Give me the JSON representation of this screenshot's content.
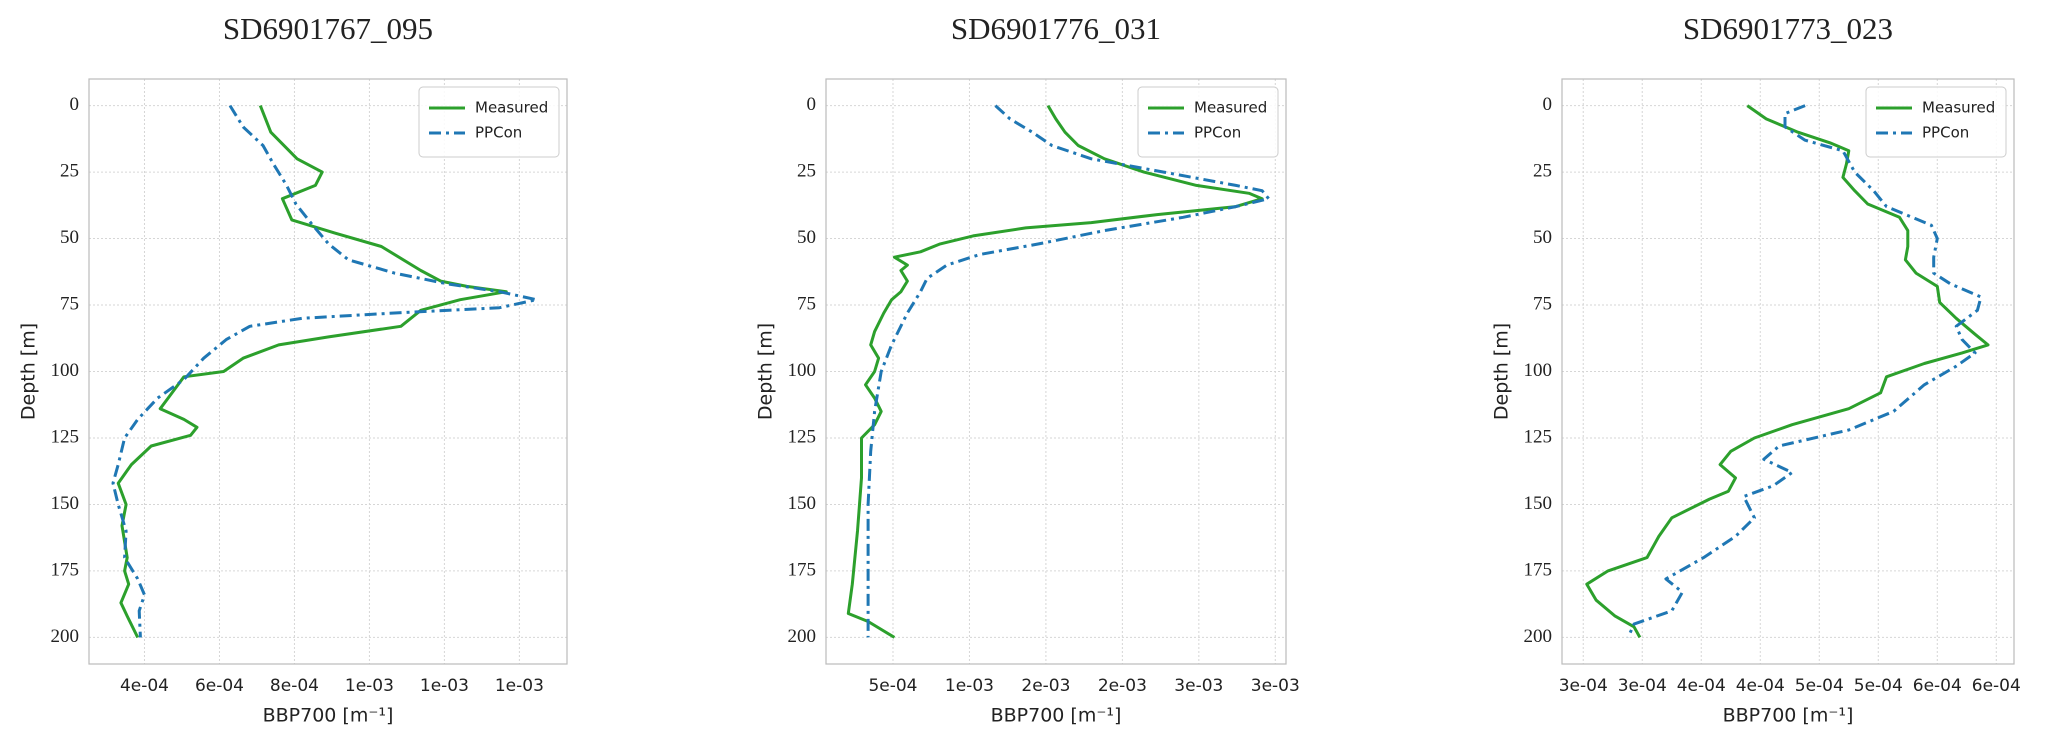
{
  "chart_data": [
    {
      "type": "line",
      "title": "SD6901767_095",
      "xlabel": "BBP700 [m⁻¹]",
      "ylabel": "Depth [m]",
      "xlim": [
        0.000252,
        0.001527
      ],
      "ylim": [
        -10,
        210
      ],
      "y_inverted": true,
      "grid": true,
      "legend": "upper right",
      "xticks": [
        {
          "value": 0.0004,
          "label": "4e-04"
        },
        {
          "value": 0.0006,
          "label": "6e-04"
        },
        {
          "value": 0.0008,
          "label": "8e-04"
        },
        {
          "value": 0.001,
          "label": "1e-03"
        },
        {
          "value": 0.0012,
          "label": "1e-03"
        },
        {
          "value": 0.0014,
          "label": "1e-03"
        }
      ],
      "yticks": [
        0,
        25,
        50,
        75,
        100,
        125,
        150,
        175,
        200
      ],
      "series": [
        {
          "name": "Measured",
          "color": "#2ca02c",
          "linestyle": "solid",
          "depth": [
            0,
            10,
            20,
            25,
            30,
            35,
            43,
            48,
            53,
            62,
            66,
            68,
            70,
            73,
            77,
            83,
            87,
            90,
            95,
            100,
            102,
            110,
            114,
            118,
            121,
            124,
            128,
            135,
            142,
            150,
            158,
            170,
            175,
            180,
            187,
            192,
            200
          ],
          "values": [
            0.000709,
            0.000737,
            0.000807,
            0.000874,
            0.000856,
            0.000768,
            0.000793,
            0.000909,
            0.001032,
            0.001137,
            0.00119,
            0.00126,
            0.001365,
            0.001242,
            0.001137,
            0.001084,
            0.000891,
            0.000758,
            0.000663,
            0.000611,
            0.000505,
            0.000463,
            0.000442,
            0.000505,
            0.00054,
            0.000523,
            0.000418,
            0.000365,
            0.00033,
            0.000351,
            0.00034,
            0.000354,
            0.000347,
            0.000358,
            0.000337,
            0.000354,
            0.000382
          ]
        },
        {
          "name": "PPCon",
          "color": "#1f77b4",
          "linestyle": "dashdot",
          "depth": [
            0,
            8,
            15,
            22,
            30,
            37,
            45,
            52,
            58,
            63,
            67,
            70,
            73,
            76,
            78,
            80,
            83,
            88,
            95,
            103,
            110,
            118,
            125,
            135,
            142,
            150,
            160,
            170,
            178,
            184,
            190,
            200
          ],
          "values": [
            0.000628,
            0.000663,
            0.000716,
            0.000744,
            0.000779,
            0.000804,
            0.000849,
            0.000891,
            0.000944,
            0.001067,
            0.001207,
            0.001347,
            0.001446,
            0.001347,
            0.001067,
            0.000821,
            0.000681,
            0.000618,
            0.000558,
            0.000505,
            0.000435,
            0.000382,
            0.000347,
            0.00033,
            0.000316,
            0.00033,
            0.000351,
            0.000347,
            0.000382,
            0.0004,
            0.000386,
            0.000389
          ]
        }
      ]
    },
    {
      "type": "line",
      "title": "SD6901776_031",
      "xlabel": "BBP700 [m⁻¹]",
      "ylabel": "Depth [m]",
      "xlim": [
        6.2e-05,
        0.00307
      ],
      "ylim": [
        -10,
        210
      ],
      "y_inverted": true,
      "grid": true,
      "legend": "upper right",
      "xticks": [
        {
          "value": 0.0005,
          "label": "5e-04"
        },
        {
          "value": 0.001,
          "label": "1e-03"
        },
        {
          "value": 0.0015,
          "label": "2e-03"
        },
        {
          "value": 0.002,
          "label": "2e-03"
        },
        {
          "value": 0.0025,
          "label": "3e-03"
        },
        {
          "value": 0.003,
          "label": "3e-03"
        }
      ],
      "yticks": [
        0,
        25,
        50,
        75,
        100,
        125,
        150,
        175,
        200
      ],
      "series": [
        {
          "name": "Measured",
          "color": "#2ca02c",
          "linestyle": "solid",
          "depth": [
            0,
            5,
            10,
            15,
            20,
            25,
            30,
            33,
            35,
            38,
            41,
            44,
            46,
            49,
            52,
            55,
            57,
            60,
            62,
            66,
            70,
            73,
            78,
            85,
            90,
            95,
            100,
            105,
            110,
            115,
            120,
            125,
            140,
            160,
            180,
            191,
            194,
            200
          ],
          "values": [
            0.001514,
            0.001565,
            0.001625,
            0.001711,
            0.001883,
            0.002141,
            0.002484,
            0.002828,
            0.002914,
            0.002742,
            0.002227,
            0.001797,
            0.001368,
            0.001024,
            0.000809,
            0.00068,
            0.000509,
            0.000594,
            0.000552,
            0.000594,
            0.000552,
            0.000491,
            0.00044,
            0.00038,
            0.000354,
            0.000406,
            0.00038,
            0.00032,
            0.00038,
            0.000423,
            0.00038,
            0.000294,
            0.000294,
            0.000268,
            0.000234,
            0.000208,
            0.000337,
            0.000509
          ]
        },
        {
          "name": "PPCon",
          "color": "#1f77b4",
          "linestyle": "dashdot",
          "depth": [
            0,
            5,
            10,
            15,
            20,
            25,
            30,
            32,
            35,
            38,
            42,
            47,
            52,
            56,
            60,
            65,
            70,
            78,
            90,
            100,
            115,
            130,
            150,
            175,
            200
          ],
          "values": [
            0.00117,
            0.001265,
            0.001411,
            0.001539,
            0.001797,
            0.00227,
            0.002742,
            0.002914,
            0.002957,
            0.002742,
            0.002398,
            0.001883,
            0.001453,
            0.001067,
            0.000852,
            0.000723,
            0.00068,
            0.000594,
            0.000491,
            0.000423,
            0.00038,
            0.000354,
            0.000337,
            0.000337,
            0.000337
          ]
        }
      ]
    },
    {
      "type": "line",
      "title": "SD6901773_023",
      "xlabel": "BBP700 [m⁻¹]",
      "ylabel": "Depth [m]",
      "xlim": [
        0.000232,
        0.000615
      ],
      "ylim": [
        -10,
        210
      ],
      "y_inverted": true,
      "grid": true,
      "legend": "upper right",
      "xticks": [
        {
          "value": 0.00025,
          "label": "3e-04"
        },
        {
          "value": 0.0003,
          "label": "3e-04"
        },
        {
          "value": 0.00035,
          "label": "4e-04"
        },
        {
          "value": 0.0004,
          "label": "4e-04"
        },
        {
          "value": 0.00045,
          "label": "5e-04"
        },
        {
          "value": 0.0005,
          "label": "5e-04"
        },
        {
          "value": 0.00055,
          "label": "6e-04"
        },
        {
          "value": 0.0006,
          "label": "6e-04"
        }
      ],
      "yticks": [
        0,
        25,
        50,
        75,
        100,
        125,
        150,
        175,
        200
      ],
      "series": [
        {
          "name": "Measured",
          "color": "#2ca02c",
          "linestyle": "solid",
          "depth": [
            0,
            5,
            10,
            14,
            17,
            22,
            27,
            32,
            37,
            42,
            47,
            53,
            58,
            63,
            68,
            74,
            80,
            86,
            90,
            93,
            97,
            102,
            108,
            114,
            120,
            125,
            130,
            135,
            140,
            145,
            148,
            155,
            162,
            170,
            175,
            180,
            186,
            192,
            196,
            200
          ],
          "values": [
            0.000389,
            0.000405,
            0.000432,
            0.000459,
            0.000475,
            0.000473,
            0.00047,
            0.00048,
            0.000491,
            0.000518,
            0.000525,
            0.000525,
            0.000523,
            0.000532,
            0.00055,
            0.000552,
            0.000566,
            0.000582,
            0.000593,
            0.000571,
            0.000539,
            0.000507,
            0.000502,
            0.000475,
            0.000427,
            0.000395,
            0.000375,
            0.000366,
            0.000379,
            0.000373,
            0.000357,
            0.000325,
            0.000314,
            0.000304,
            0.000271,
            0.000253,
            0.000261,
            0.000277,
            0.000293,
            0.000298
          ]
        },
        {
          "name": "PPCon",
          "color": "#1f77b4",
          "linestyle": "dashdot",
          "depth": [
            0,
            3,
            8,
            13,
            17,
            25,
            32,
            38,
            45,
            50,
            57,
            63,
            67,
            72,
            77,
            83,
            88,
            93,
            98,
            105,
            115,
            122,
            128,
            133,
            138,
            143,
            147,
            155,
            162,
            170,
            178,
            183,
            190,
            195,
            200
          ],
          "values": [
            0.000438,
            0.000421,
            0.000421,
            0.000438,
            0.00047,
            0.00048,
            0.000496,
            0.000507,
            0.000545,
            0.00055,
            0.000547,
            0.000547,
            0.000561,
            0.000587,
            0.000584,
            0.000566,
            0.000571,
            0.000582,
            0.000566,
            0.000539,
            0.000513,
            0.000475,
            0.000416,
            0.000403,
            0.000427,
            0.000411,
            0.000386,
            0.000395,
            0.000379,
            0.000352,
            0.00032,
            0.000334,
            0.000325,
            0.000293,
            0.000288
          ]
        }
      ]
    }
  ]
}
